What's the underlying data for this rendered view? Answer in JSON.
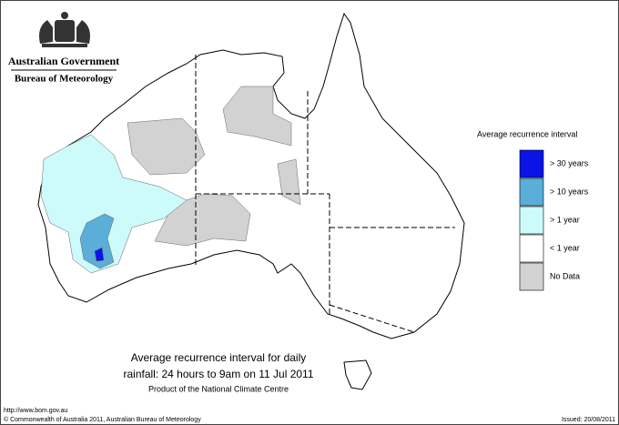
{
  "header": {
    "agency": "Australian Government",
    "bureau": "Bureau of Meteorology"
  },
  "legend": {
    "title": "Average recurrence interval",
    "items": [
      {
        "label": "> 30 years",
        "color": "#0a14e6"
      },
      {
        "label": "> 10 years",
        "color": "#5aaed8"
      },
      {
        "label": "> 1 year",
        "color": "#cdfafa"
      },
      {
        "label": "< 1 year",
        "color": "#ffffff"
      },
      {
        "label": "No Data",
        "color": "#d2d2d2"
      }
    ]
  },
  "caption": {
    "lines": [
      "Average recurrence interval for daily",
      "rainfall: 24 hours to 9am on 11 Jul 2011",
      "Product of the National Climate Centre"
    ]
  },
  "footer": {
    "url": "http://www.bom.gov.au",
    "copyright": "© Commonwealth of Australia 2011, Australian Bureau of Meteorology",
    "issued": "Issued: 20/08/2011"
  }
}
